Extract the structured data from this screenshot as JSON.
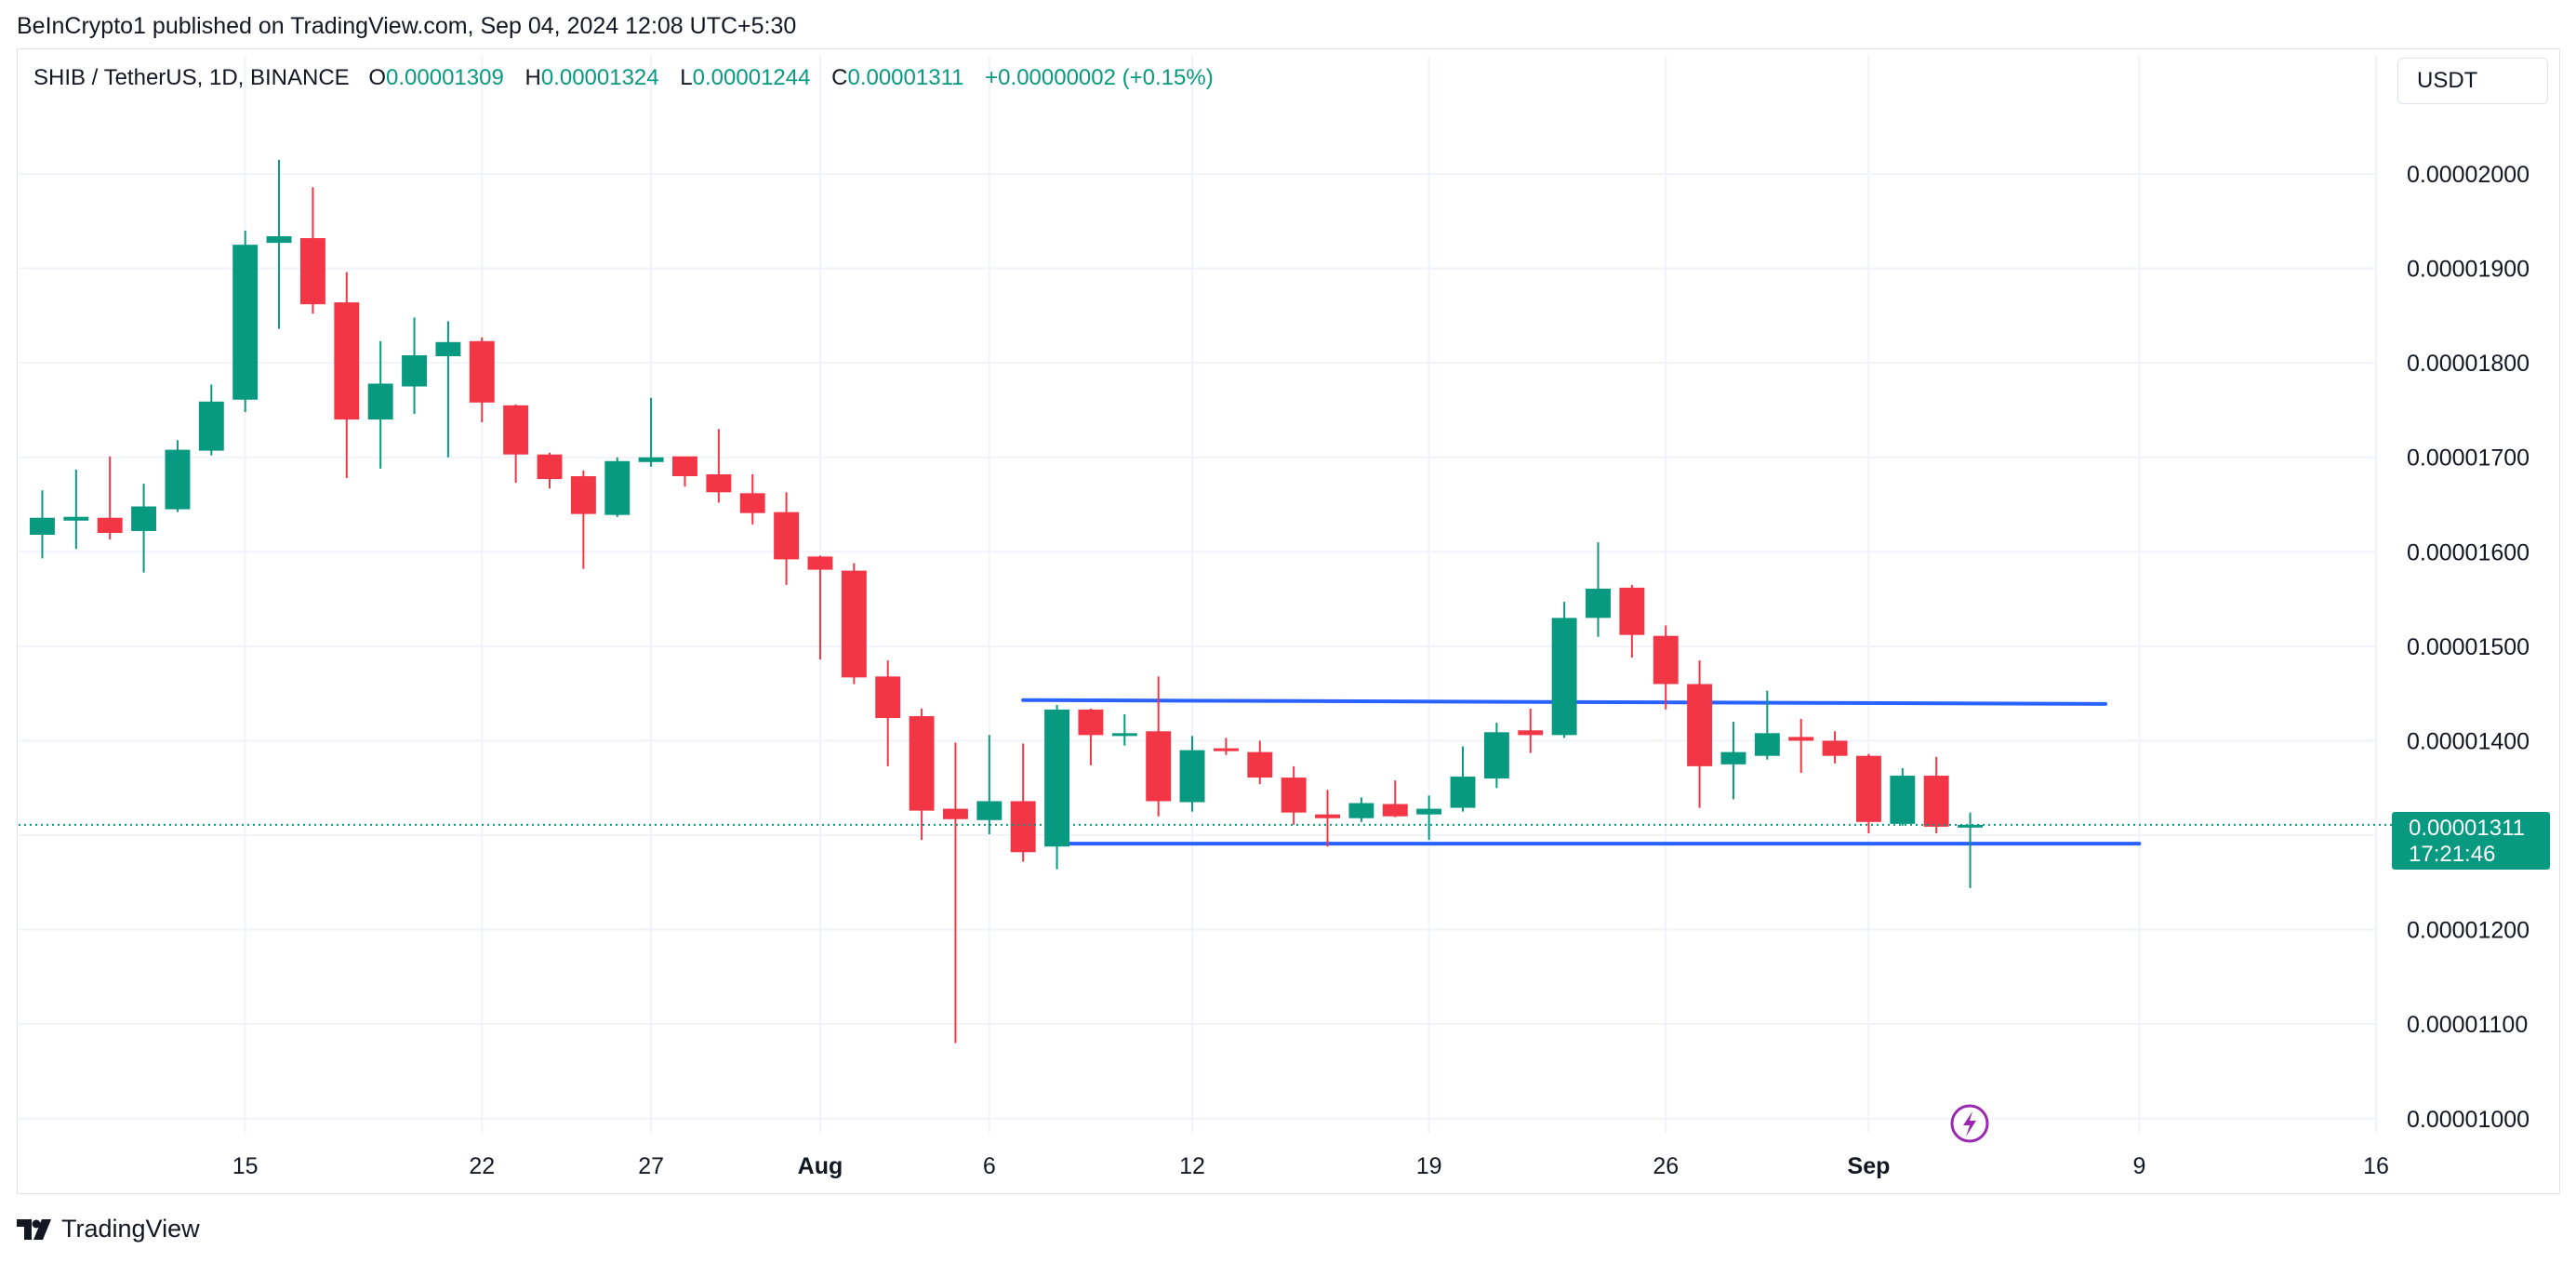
{
  "header": {
    "published_by": "BeInCrypto1 published on TradingView.com, Sep 04, 2024 12:08 UTC+5:30"
  },
  "legend": {
    "symbol": "SHIB / TetherUS, 1D, BINANCE",
    "o_label": "O",
    "o_value": "0.00001309",
    "h_label": "H",
    "h_value": "0.00001324",
    "l_label": "L",
    "l_value": "0.00001244",
    "c_label": "C",
    "c_value": "0.00001311",
    "change": "+0.00000002 (+0.15%)"
  },
  "currency": "USDT",
  "price_tag": {
    "price": "0.00001311",
    "countdown": "17:21:46"
  },
  "footer": {
    "brand": "TradingView"
  },
  "colors": {
    "up": "#089981",
    "down": "#f23645",
    "trendline": "#2962ff",
    "grid": "#f0f3fa",
    "event_icon": "#9c27b0"
  },
  "icons": {
    "event": "lightning-icon",
    "logo": "tradingview-logo-icon"
  },
  "chart_data": {
    "type": "candlestick",
    "title": "SHIB / TetherUS, 1D, BINANCE",
    "x_ticks": [
      {
        "label": "15",
        "index": 6,
        "bold": false
      },
      {
        "label": "22",
        "index": 13,
        "bold": false
      },
      {
        "label": "27",
        "index": 18,
        "bold": false
      },
      {
        "label": "Aug",
        "index": 23,
        "bold": true
      },
      {
        "label": "6",
        "index": 28,
        "bold": false
      },
      {
        "label": "12",
        "index": 34,
        "bold": false
      },
      {
        "label": "19",
        "index": 41,
        "bold": false
      },
      {
        "label": "26",
        "index": 48,
        "bold": false
      },
      {
        "label": "Sep",
        "index": 54,
        "bold": true
      },
      {
        "label": "9",
        "index": 62,
        "bold": false
      },
      {
        "label": "16",
        "index": 69,
        "bold": false
      }
    ],
    "y_ticks": [
      "0.00002000",
      "0.00001900",
      "0.00001800",
      "0.00001700",
      "0.00001600",
      "0.00001500",
      "0.00001400",
      "0.00001200",
      "0.00001100",
      "0.00001000"
    ],
    "y_tick_values": [
      2.0,
      1.9,
      1.8,
      1.7,
      1.6,
      1.5,
      1.4,
      1.2,
      1.1,
      1.0
    ],
    "y_unit_note": "values in units of 1e-5 USDT",
    "ylim": [
      0.985,
      2.125
    ],
    "x_range_index": [
      -0.7,
      69.0
    ],
    "last_price": 1.311,
    "candles": [
      {
        "o": 1.618,
        "h": 1.665,
        "l": 1.593,
        "c": 1.636
      },
      {
        "o": 1.633,
        "h": 1.687,
        "l": 1.603,
        "c": 1.637
      },
      {
        "o": 1.636,
        "h": 1.701,
        "l": 1.613,
        "c": 1.62
      },
      {
        "o": 1.622,
        "h": 1.672,
        "l": 1.578,
        "c": 1.648
      },
      {
        "o": 1.645,
        "h": 1.718,
        "l": 1.642,
        "c": 1.708
      },
      {
        "o": 1.707,
        "h": 1.777,
        "l": 1.702,
        "c": 1.759
      },
      {
        "o": 1.761,
        "h": 1.94,
        "l": 1.748,
        "c": 1.925
      },
      {
        "o": 1.927,
        "h": 2.015,
        "l": 1.836,
        "c": 1.934
      },
      {
        "o": 1.932,
        "h": 1.986,
        "l": 1.852,
        "c": 1.862
      },
      {
        "o": 1.864,
        "h": 1.896,
        "l": 1.678,
        "c": 1.74
      },
      {
        "o": 1.74,
        "h": 1.823,
        "l": 1.688,
        "c": 1.778
      },
      {
        "o": 1.775,
        "h": 1.848,
        "l": 1.746,
        "c": 1.808
      },
      {
        "o": 1.807,
        "h": 1.844,
        "l": 1.7,
        "c": 1.822
      },
      {
        "o": 1.823,
        "h": 1.827,
        "l": 1.737,
        "c": 1.758
      },
      {
        "o": 1.755,
        "h": 1.756,
        "l": 1.673,
        "c": 1.703
      },
      {
        "o": 1.703,
        "h": 1.705,
        "l": 1.667,
        "c": 1.677
      },
      {
        "o": 1.68,
        "h": 1.686,
        "l": 1.582,
        "c": 1.64
      },
      {
        "o": 1.639,
        "h": 1.7,
        "l": 1.637,
        "c": 1.696
      },
      {
        "o": 1.695,
        "h": 1.763,
        "l": 1.69,
        "c": 1.7
      },
      {
        "o": 1.701,
        "h": 1.7,
        "l": 1.669,
        "c": 1.68
      },
      {
        "o": 1.682,
        "h": 1.73,
        "l": 1.652,
        "c": 1.663
      },
      {
        "o": 1.662,
        "h": 1.682,
        "l": 1.629,
        "c": 1.641
      },
      {
        "o": 1.642,
        "h": 1.663,
        "l": 1.565,
        "c": 1.592
      },
      {
        "o": 1.595,
        "h": 1.596,
        "l": 1.486,
        "c": 1.581
      },
      {
        "o": 1.58,
        "h": 1.588,
        "l": 1.46,
        "c": 1.467
      },
      {
        "o": 1.468,
        "h": 1.485,
        "l": 1.373,
        "c": 1.424
      },
      {
        "o": 1.426,
        "h": 1.434,
        "l": 1.295,
        "c": 1.326
      },
      {
        "o": 1.328,
        "h": 1.398,
        "l": 1.08,
        "c": 1.317
      },
      {
        "o": 1.316,
        "h": 1.406,
        "l": 1.301,
        "c": 1.336
      },
      {
        "o": 1.336,
        "h": 1.397,
        "l": 1.272,
        "c": 1.282
      },
      {
        "o": 1.288,
        "h": 1.438,
        "l": 1.264,
        "c": 1.433
      },
      {
        "o": 1.433,
        "h": 1.434,
        "l": 1.374,
        "c": 1.406
      },
      {
        "o": 1.405,
        "h": 1.428,
        "l": 1.395,
        "c": 1.408
      },
      {
        "o": 1.41,
        "h": 1.468,
        "l": 1.32,
        "c": 1.336
      },
      {
        "o": 1.335,
        "h": 1.405,
        "l": 1.325,
        "c": 1.39
      },
      {
        "o": 1.392,
        "h": 1.403,
        "l": 1.385,
        "c": 1.389
      },
      {
        "o": 1.388,
        "h": 1.4,
        "l": 1.354,
        "c": 1.361
      },
      {
        "o": 1.361,
        "h": 1.373,
        "l": 1.311,
        "c": 1.324
      },
      {
        "o": 1.322,
        "h": 1.348,
        "l": 1.288,
        "c": 1.318
      },
      {
        "o": 1.318,
        "h": 1.34,
        "l": 1.314,
        "c": 1.334
      },
      {
        "o": 1.333,
        "h": 1.358,
        "l": 1.319,
        "c": 1.32
      },
      {
        "o": 1.322,
        "h": 1.342,
        "l": 1.295,
        "c": 1.328
      },
      {
        "o": 1.329,
        "h": 1.394,
        "l": 1.325,
        "c": 1.362
      },
      {
        "o": 1.36,
        "h": 1.419,
        "l": 1.35,
        "c": 1.409
      },
      {
        "o": 1.411,
        "h": 1.434,
        "l": 1.387,
        "c": 1.406
      },
      {
        "o": 1.406,
        "h": 1.547,
        "l": 1.403,
        "c": 1.53
      },
      {
        "o": 1.53,
        "h": 1.61,
        "l": 1.51,
        "c": 1.561
      },
      {
        "o": 1.562,
        "h": 1.565,
        "l": 1.488,
        "c": 1.512
      },
      {
        "o": 1.511,
        "h": 1.522,
        "l": 1.433,
        "c": 1.46
      },
      {
        "o": 1.46,
        "h": 1.485,
        "l": 1.329,
        "c": 1.373
      },
      {
        "o": 1.375,
        "h": 1.42,
        "l": 1.338,
        "c": 1.388
      },
      {
        "o": 1.384,
        "h": 1.453,
        "l": 1.38,
        "c": 1.408
      },
      {
        "o": 1.404,
        "h": 1.423,
        "l": 1.366,
        "c": 1.4
      },
      {
        "o": 1.4,
        "h": 1.41,
        "l": 1.376,
        "c": 1.384
      },
      {
        "o": 1.384,
        "h": 1.386,
        "l": 1.302,
        "c": 1.314
      },
      {
        "o": 1.312,
        "h": 1.371,
        "l": 1.31,
        "c": 1.363
      },
      {
        "o": 1.363,
        "h": 1.383,
        "l": 1.302,
        "c": 1.309
      },
      {
        "o": 1.309,
        "h": 1.324,
        "l": 1.244,
        "c": 1.311
      }
    ],
    "trendlines": [
      {
        "from": {
          "index": 29.0,
          "value": 1.443
        },
        "to": {
          "index": 61.0,
          "value": 1.439
        }
      },
      {
        "from": {
          "index": 30.0,
          "value": 1.291
        },
        "to": {
          "index": 62.0,
          "value": 1.291
        }
      }
    ]
  }
}
